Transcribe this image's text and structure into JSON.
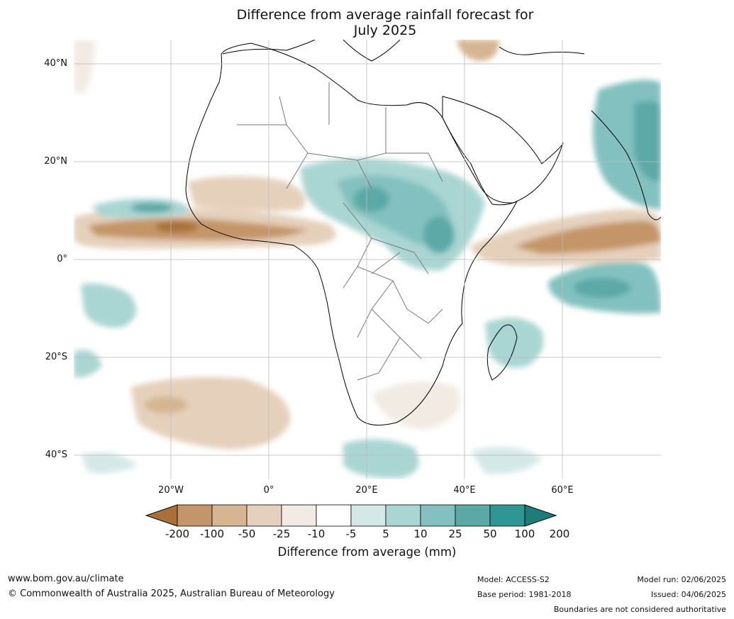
{
  "title_line1": "Difference from average rainfall forecast for",
  "title_line2": "July 2025",
  "lat_labels": [
    "40°N",
    "20°N",
    "0°",
    "20°S",
    "40°S"
  ],
  "lon_labels": [
    "20°W",
    "0°",
    "20°E",
    "40°E",
    "60°E"
  ],
  "colorbar": {
    "ticks": [
      "-200",
      "-100",
      "-50",
      "-25",
      "-10",
      "-5",
      "5",
      "10",
      "25",
      "50",
      "100",
      "200"
    ],
    "colors": [
      "#a97139",
      "#c49568",
      "#d6b592",
      "#e5d0bb",
      "#f2ebe3",
      "#ffffff",
      "#d4e9e7",
      "#a9d5d3",
      "#82c1bf",
      "#5ba9a7",
      "#2f9693",
      "#1c7d7a"
    ],
    "label": "Difference from average (mm)"
  },
  "footer": {
    "website": "www.bom.gov.au/climate",
    "copyright": "© Commonwealth of Australia 2025, Australian Bureau of Meteorology",
    "model": "Model: ACCESS-S2",
    "base_period": "Base period: 1981-2018",
    "model_run": "Model run: 02/06/2025",
    "issued": "Issued: 04/06/2025",
    "disclaimer": "Boundaries are not considered authoritative"
  }
}
